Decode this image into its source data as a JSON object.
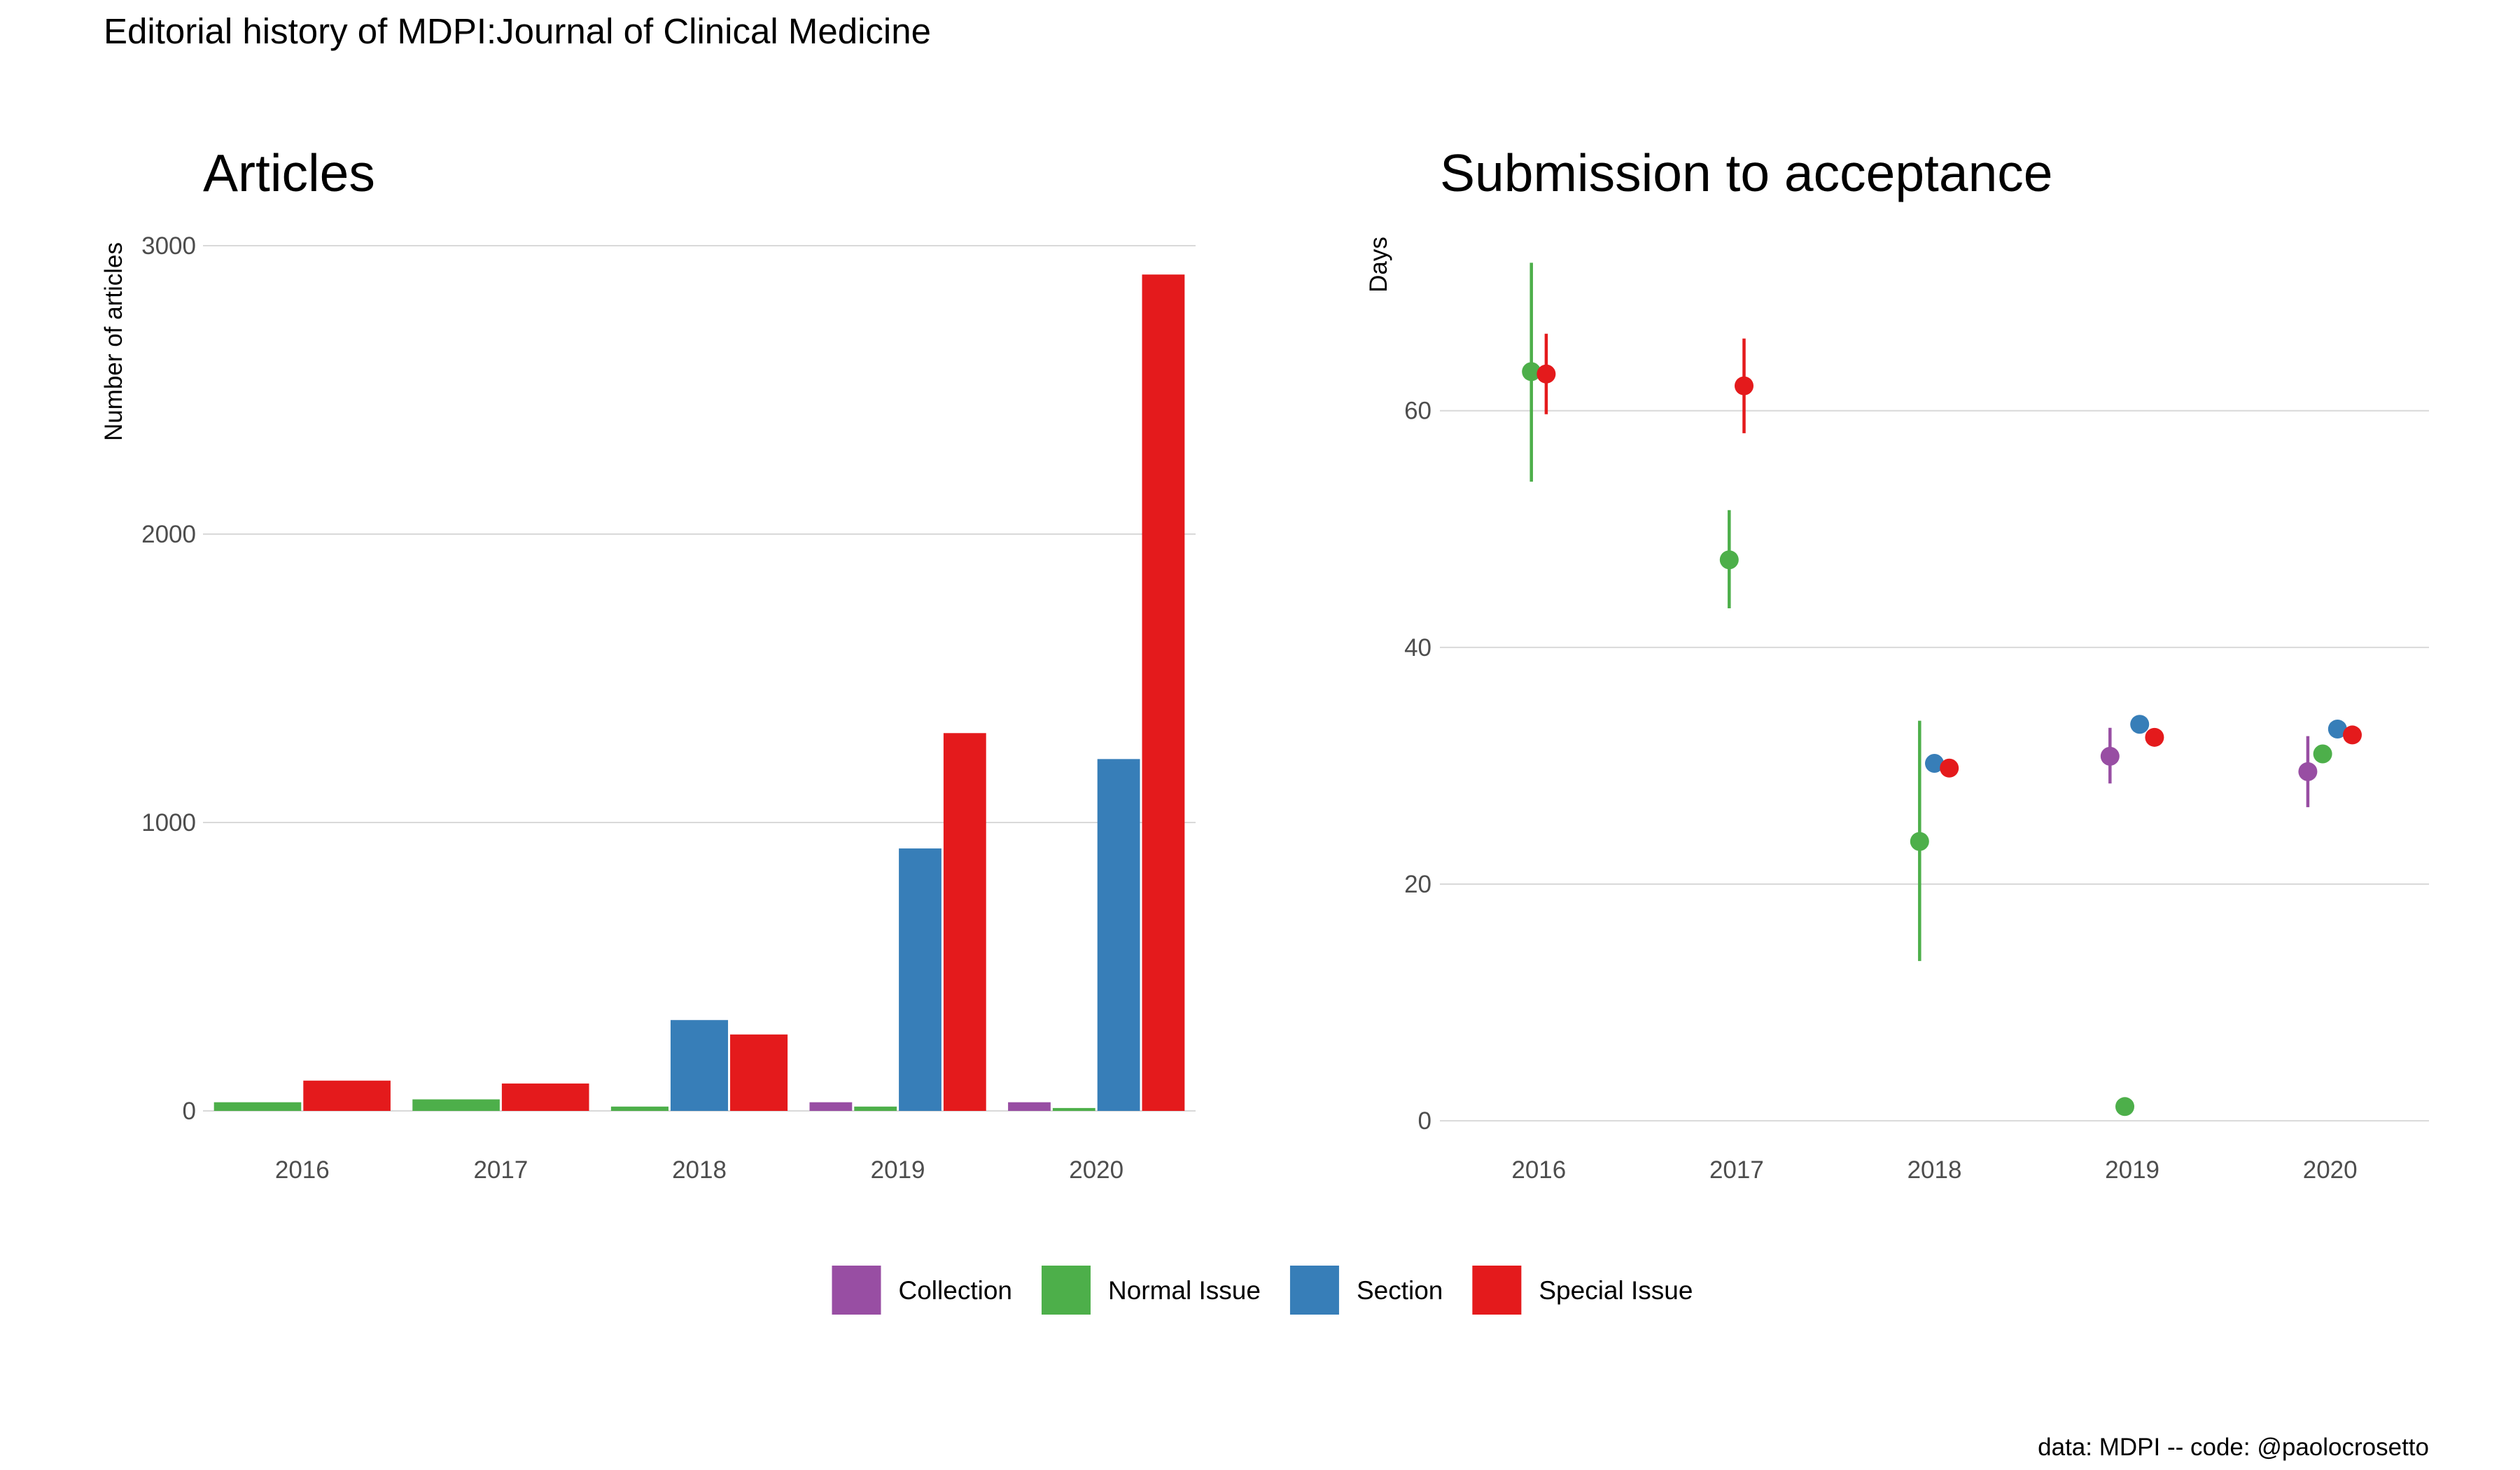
{
  "figure": {
    "title": "Editorial history of MDPI:Journal of Clinical Medicine",
    "caption": "data: MDPI -- code: @paolocrosetto"
  },
  "colors": {
    "Collection": "#984EA3",
    "Normal Issue": "#4DAF4A",
    "Section": "#377EB8",
    "Special Issue": "#E41A1C"
  },
  "legend": {
    "position": "bottom",
    "items": [
      "Collection",
      "Normal Issue",
      "Section",
      "Special Issue"
    ]
  },
  "chart_data": [
    {
      "type": "bar",
      "title": "Articles",
      "xlabel": "",
      "ylabel": "Number of articles",
      "ylim": [
        0,
        3000
      ],
      "yticks": [
        0,
        1000,
        2000,
        3000
      ],
      "grid": true,
      "categories": [
        "2016",
        "2017",
        "2018",
        "2019",
        "2020"
      ],
      "series": [
        {
          "name": "Collection",
          "values": [
            null,
            null,
            null,
            30,
            30
          ]
        },
        {
          "name": "Normal Issue",
          "values": [
            30,
            40,
            15,
            15,
            10
          ]
        },
        {
          "name": "Section",
          "values": [
            null,
            null,
            315,
            910,
            1220
          ]
        },
        {
          "name": "Special Issue",
          "values": [
            105,
            95,
            265,
            1310,
            2900
          ]
        }
      ]
    },
    {
      "type": "scatter",
      "title": "Submission to acceptance",
      "xlabel": "",
      "ylabel": "Days",
      "ylim": [
        -1,
        74
      ],
      "yticks": [
        0,
        20,
        40,
        60
      ],
      "grid": true,
      "categories": [
        "2016",
        "2017",
        "2018",
        "2019",
        "2020"
      ],
      "series": [
        {
          "name": "Collection",
          "points": [
            {
              "x": "2019",
              "y": 30.8,
              "low": 28.5,
              "high": 33.2
            },
            {
              "x": "2020",
              "y": 29.5,
              "low": 26.5,
              "high": 32.5
            }
          ]
        },
        {
          "name": "Normal Issue",
          "points": [
            {
              "x": "2016",
              "y": 63.3,
              "low": 54.0,
              "high": 72.5
            },
            {
              "x": "2017",
              "y": 47.4,
              "low": 43.3,
              "high": 51.6
            },
            {
              "x": "2018",
              "y": 23.6,
              "low": 13.5,
              "high": 33.8
            },
            {
              "x": "2019",
              "y": 1.2,
              "low": null,
              "high": null
            },
            {
              "x": "2020",
              "y": 31.0,
              "low": null,
              "high": null
            }
          ]
        },
        {
          "name": "Section",
          "points": [
            {
              "x": "2018",
              "y": 30.2,
              "low": null,
              "high": null
            },
            {
              "x": "2019",
              "y": 33.5,
              "low": null,
              "high": null
            },
            {
              "x": "2020",
              "y": 33.1,
              "low": null,
              "high": null
            }
          ]
        },
        {
          "name": "Special Issue",
          "points": [
            {
              "x": "2016",
              "y": 63.1,
              "low": 59.7,
              "high": 66.5
            },
            {
              "x": "2017",
              "y": 62.1,
              "low": 58.1,
              "high": 66.1
            },
            {
              "x": "2018",
              "y": 29.8,
              "low": null,
              "high": null
            },
            {
              "x": "2019",
              "y": 32.4,
              "low": null,
              "high": null
            },
            {
              "x": "2020",
              "y": 32.6,
              "low": null,
              "high": null
            }
          ]
        }
      ]
    }
  ]
}
